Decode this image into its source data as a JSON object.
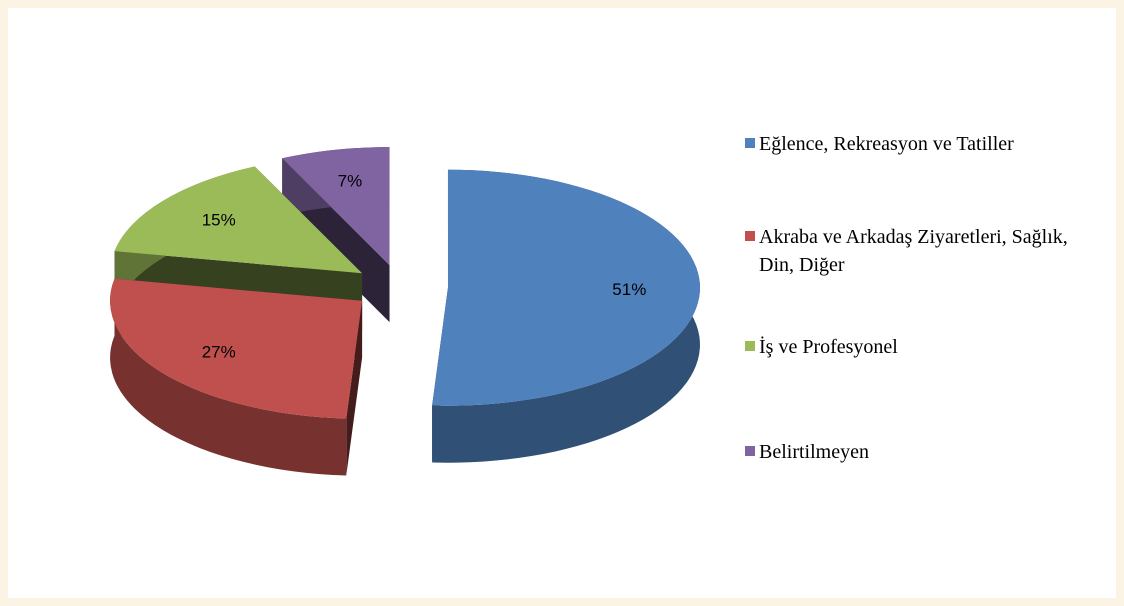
{
  "chart_data": {
    "type": "pie3d",
    "categories": [
      "Eğlence, Rekreasyon ve Tatiller",
      "Akraba ve Arkadaş Ziyaretleri, Sağlık, Din, Diğer",
      "İş ve Profesyonel",
      "Belirtilmeyen"
    ],
    "values": [
      51,
      27,
      15,
      7
    ],
    "value_labels": [
      "51%",
      "27%",
      "15%",
      "7%"
    ],
    "colors": [
      "#4f81bd",
      "#c0504d",
      "#9bbb59",
      "#8064a2"
    ],
    "legend": "right"
  }
}
